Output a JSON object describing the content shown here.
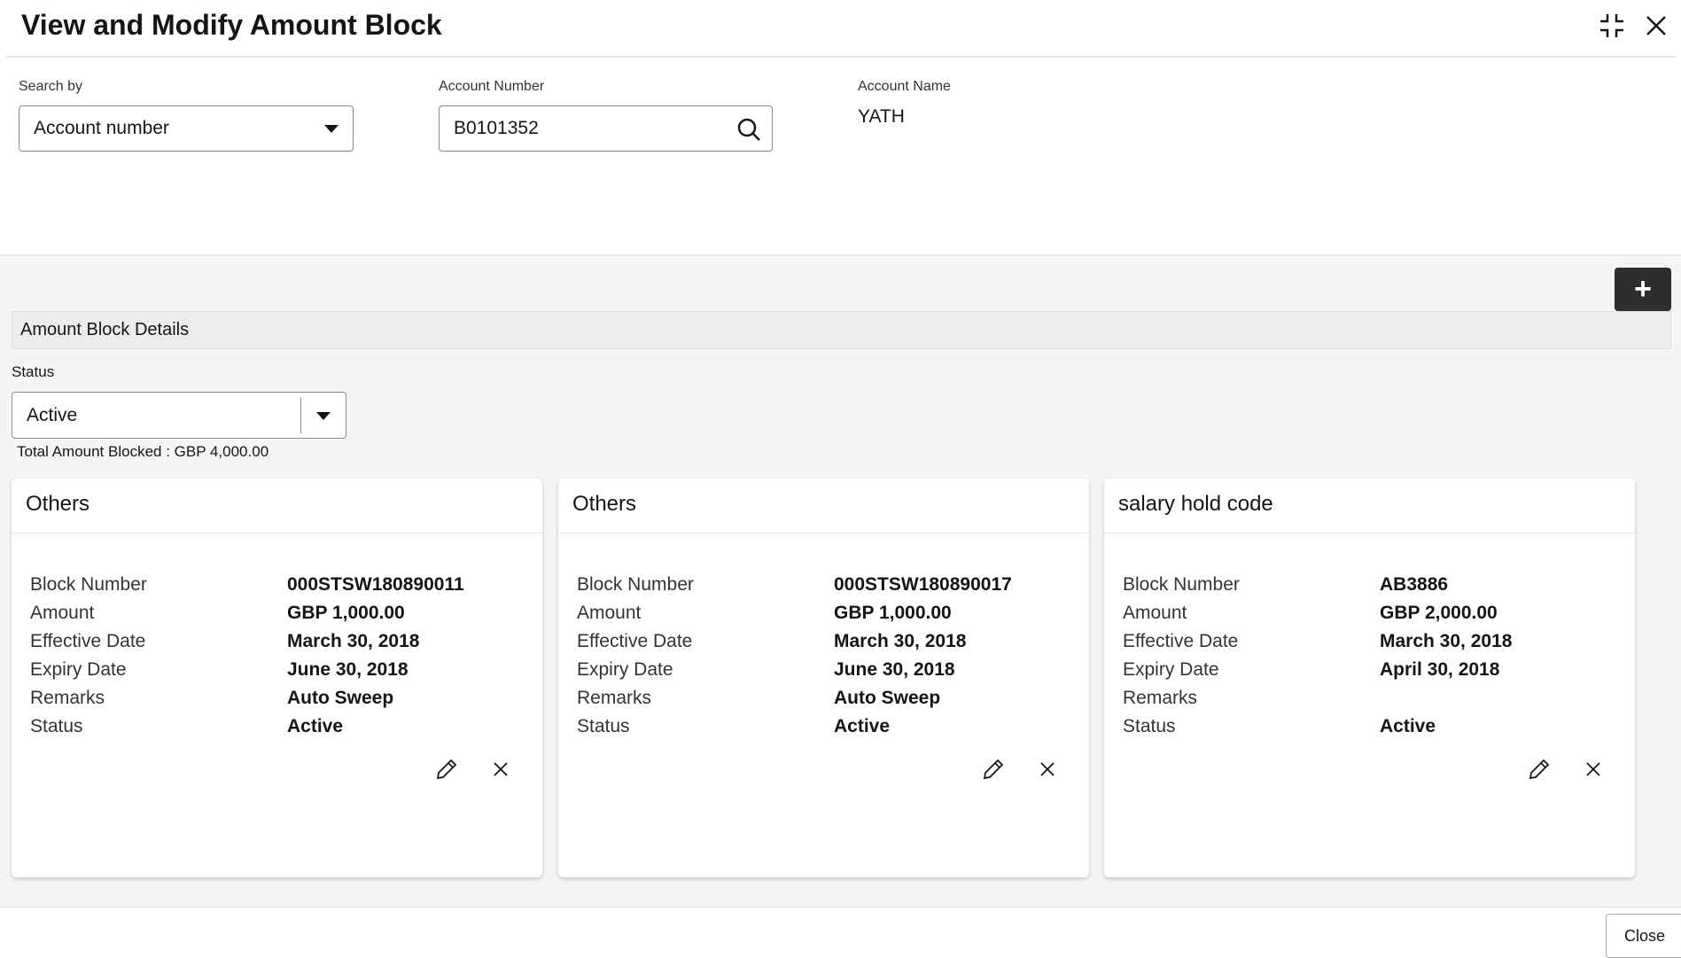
{
  "header": {
    "title": "View and Modify Amount Block",
    "icons": [
      "minimize-icon",
      "close-icon"
    ]
  },
  "search": {
    "search_by_label": "Search by",
    "search_by_value": "Account number",
    "account_number_label": "Account Number",
    "account_number_value": "B0101352",
    "account_name_label": "Account Name",
    "account_name_value": "YATH"
  },
  "section": {
    "title": "Amount Block Details",
    "add_icon": "plus-icon",
    "status_label": "Status",
    "status_value": "Active",
    "total": "Total Amount Blocked : GBP 4,000.00"
  },
  "cards": [
    {
      "title": "Others",
      "rows": [
        {
          "k": "Block Number",
          "v": "000STSW180890011"
        },
        {
          "k": "Amount",
          "v": "GBP 1,000.00"
        },
        {
          "k": "Effective Date",
          "v": "March 30, 2018"
        },
        {
          "k": "Expiry Date",
          "v": "June 30, 2018"
        },
        {
          "k": "Remarks",
          "v": "Auto Sweep"
        },
        {
          "k": "Status",
          "v": "Active"
        }
      ]
    },
    {
      "title": "Others",
      "rows": [
        {
          "k": "Block Number",
          "v": "000STSW180890017"
        },
        {
          "k": "Amount",
          "v": "GBP 1,000.00"
        },
        {
          "k": "Effective Date",
          "v": "March 30, 2018"
        },
        {
          "k": "Expiry Date",
          "v": "June 30, 2018"
        },
        {
          "k": "Remarks",
          "v": "Auto Sweep"
        },
        {
          "k": "Status",
          "v": "Active"
        }
      ]
    },
    {
      "title": "salary hold code",
      "rows": [
        {
          "k": "Block Number",
          "v": "AB3886"
        },
        {
          "k": "Amount",
          "v": "GBP 2,000.00"
        },
        {
          "k": "Effective Date",
          "v": "March 30, 2018"
        },
        {
          "k": "Expiry Date",
          "v": "April 30, 2018"
        },
        {
          "k": "Remarks",
          "v": ""
        },
        {
          "k": "Status",
          "v": "Active"
        }
      ]
    }
  ],
  "footer": {
    "close_label": "Close"
  }
}
